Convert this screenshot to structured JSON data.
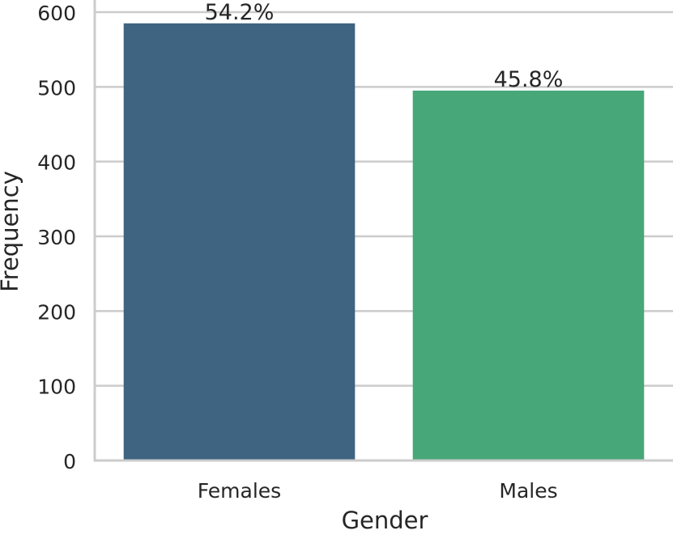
{
  "chart_data": {
    "type": "bar",
    "categories": [
      "Females",
      "Males"
    ],
    "values": [
      585,
      495
    ],
    "data_labels": [
      "54.2%",
      "45.8%"
    ],
    "xlabel": "Gender",
    "ylabel": "Frequency",
    "ylim": [
      0,
      600
    ],
    "yticks": [
      0,
      100,
      200,
      300,
      400,
      500,
      600
    ],
    "grid": "horizontal",
    "colors": [
      "#3e6481",
      "#47a778"
    ],
    "grid_color": "#cccccc",
    "axis_color": "#cccccc"
  }
}
